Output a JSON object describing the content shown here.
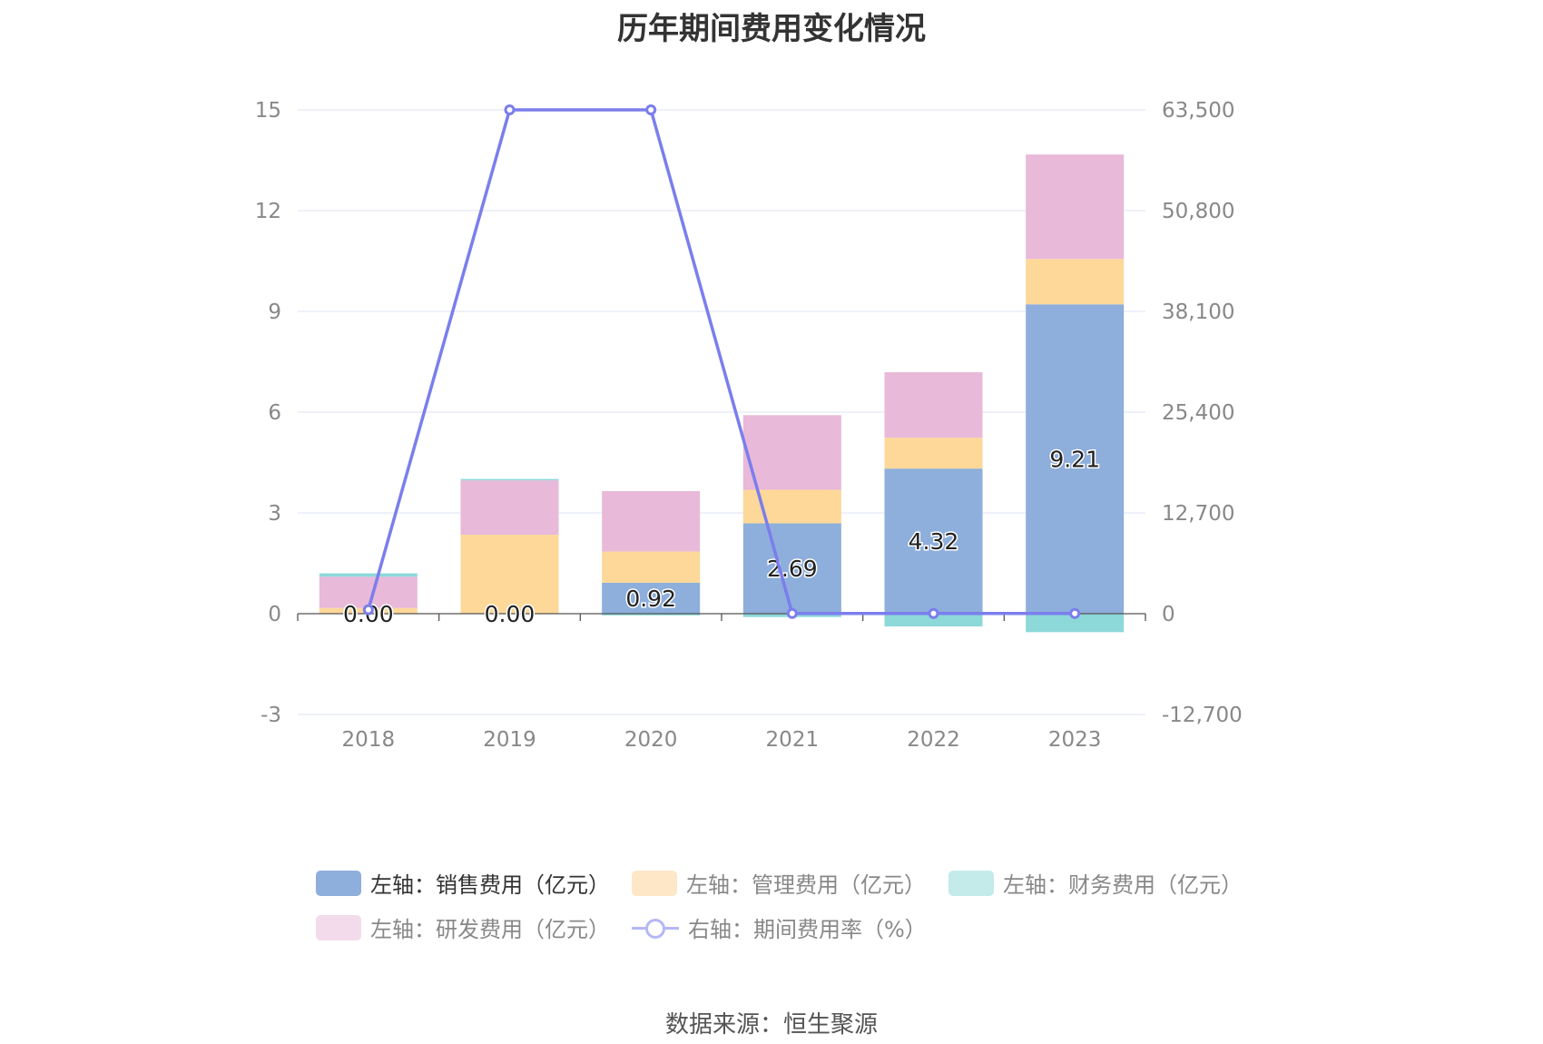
{
  "title": "历年期间费用变化情况",
  "source": "数据来源：恒生聚源",
  "colors": {
    "sales": "#8eaedb",
    "admin": "#fdd899",
    "finance": "#8dd8d9",
    "rd": "#e8b9d9",
    "rate": "#7b7eec",
    "grid": "#dde3f3",
    "axis_text": "#888888",
    "zero_line": "#555555"
  },
  "legend": [
    {
      "key": "sales",
      "label": "左轴：销售费用（亿元）",
      "color": "#8eaedb",
      "active": true
    },
    {
      "key": "admin",
      "label": "左轴：管理费用（亿元）",
      "color": "#fde7c7",
      "active": false
    },
    {
      "key": "finance",
      "label": "左轴：财务费用（亿元）",
      "color": "#c4eaea",
      "active": false
    },
    {
      "key": "rd",
      "label": "左轴：研发费用（亿元）",
      "color": "#f3dbeb",
      "active": false
    },
    {
      "key": "rate",
      "label": "右轴：期间费用率（%）",
      "color": "#b5b7f4",
      "active": false
    }
  ],
  "chart_data": {
    "type": "bar",
    "stacked": true,
    "categories": [
      "2018",
      "2019",
      "2020",
      "2021",
      "2022",
      "2023"
    ],
    "y_left": {
      "ticks": [
        -3,
        0,
        3,
        6,
        9,
        12,
        15
      ],
      "tick_labels": [
        "-3",
        "0",
        "3",
        "6",
        "9",
        "12",
        "15"
      ],
      "range": [
        -3,
        15
      ]
    },
    "y_right": {
      "ticks": [
        -12700,
        0,
        12700,
        25400,
        38100,
        50800,
        63500
      ],
      "tick_labels": [
        "-12,700",
        "0",
        "12,700",
        "25,400",
        "38,100",
        "50,800",
        "63,500"
      ],
      "range": [
        -12700,
        63500
      ]
    },
    "grid": true,
    "legend_position": "bottom",
    "series": [
      {
        "key": "sales",
        "name": "左轴：销售费用（亿元）",
        "axis": "left",
        "values": [
          0.0,
          0.0,
          0.92,
          2.69,
          4.32,
          9.21
        ],
        "labels": [
          "0.00",
          "0.00",
          "0.92",
          "2.69",
          "4.32",
          "9.21"
        ]
      },
      {
        "key": "admin",
        "name": "左轴：管理费用（亿元）",
        "axis": "left",
        "values": [
          0.17,
          2.35,
          0.93,
          1.0,
          0.92,
          1.35
        ]
      },
      {
        "key": "finance",
        "name": "左轴：财务费用（亿元）",
        "axis": "left",
        "values": [
          0.1,
          0.04,
          -0.05,
          -0.1,
          -0.38,
          -0.55
        ]
      },
      {
        "key": "rd",
        "name": "左轴：研发费用（亿元）",
        "axis": "left",
        "values": [
          0.93,
          1.62,
          1.8,
          2.22,
          1.95,
          3.11
        ]
      },
      {
        "key": "rate",
        "name": "右轴：期间费用率（%）",
        "type": "line",
        "axis": "right",
        "values": [
          500,
          63500,
          63500,
          30,
          30,
          30
        ]
      }
    ]
  }
}
